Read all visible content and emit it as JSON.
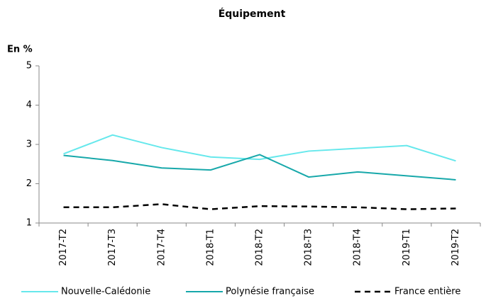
{
  "chart_data": {
    "type": "line",
    "title": "Équipement",
    "y_label": "En %",
    "categories": [
      "2017-T2",
      "2017-T3",
      "2017-T4",
      "2018-T1",
      "2018-T2",
      "2018-T3",
      "2018-T4",
      "2019-T1",
      "2019-T2"
    ],
    "series": [
      {
        "name": "Nouvelle-Calédonie",
        "color": "#66e8ec",
        "dashed": false,
        "values": [
          2.76,
          3.24,
          2.92,
          2.68,
          2.62,
          2.83,
          2.9,
          2.97,
          2.58
        ]
      },
      {
        "name": "Polynésie française",
        "color": "#17a8aa",
        "dashed": false,
        "values": [
          2.72,
          2.59,
          2.4,
          2.35,
          2.74,
          2.17,
          2.3,
          2.2,
          2.1
        ]
      },
      {
        "name": "France entière",
        "color": "#000000",
        "dashed": true,
        "values": [
          1.4,
          1.4,
          1.48,
          1.35,
          1.43,
          1.42,
          1.4,
          1.35,
          1.37
        ]
      }
    ],
    "ylim": [
      1,
      5
    ],
    "yticks": [
      1,
      2,
      3,
      4,
      5
    ],
    "grid": false,
    "legend": "bottom"
  }
}
